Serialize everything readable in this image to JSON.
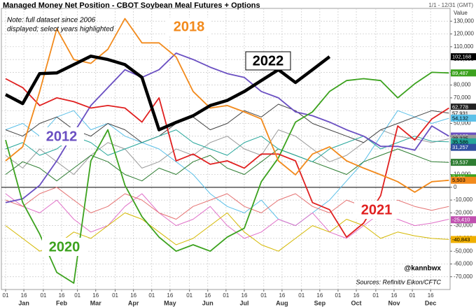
{
  "chart_data": {
    "type": "line",
    "title": "Managed Money Net Position - CBOT Soybean Meal Futures + Options",
    "date_range": "1/1 - 12/31 (GMT)",
    "y_axis_label": "Value",
    "note": [
      "Note: full dataset since 2006",
      "displayed; select years highlighted"
    ],
    "credit": "@kannbwx",
    "source": "Sources: Refinitiv Eikon/CFTC",
    "grid": true,
    "xlim": [
      1,
      366
    ],
    "ylim": [
      -80000,
      140000
    ],
    "x": [
      1,
      15,
      29,
      43,
      57,
      71,
      85,
      99,
      113,
      127,
      141,
      155,
      169,
      183,
      197,
      211,
      225,
      239,
      253,
      267,
      281,
      295,
      309,
      323,
      337,
      351,
      365
    ],
    "xticks": [
      {
        "value": 1,
        "label": "01"
      },
      {
        "value": 16,
        "label": "16"
      },
      {
        "value": 32,
        "label": "01"
      },
      {
        "value": 47,
        "label": "16"
      },
      {
        "value": 60,
        "label": "01"
      },
      {
        "value": 75,
        "label": "16"
      },
      {
        "value": 91,
        "label": "01"
      },
      {
        "value": 106,
        "label": "16"
      },
      {
        "value": 121,
        "label": "01"
      },
      {
        "value": 136,
        "label": "16"
      },
      {
        "value": 152,
        "label": "01"
      },
      {
        "value": 167,
        "label": "16"
      },
      {
        "value": 182,
        "label": "01"
      },
      {
        "value": 197,
        "label": "16"
      },
      {
        "value": 213,
        "label": "01"
      },
      {
        "value": 228,
        "label": "16"
      },
      {
        "value": 244,
        "label": "01"
      },
      {
        "value": 259,
        "label": "16"
      },
      {
        "value": 274,
        "label": "01"
      },
      {
        "value": 289,
        "label": "16"
      },
      {
        "value": 305,
        "label": "01"
      },
      {
        "value": 320,
        "label": "16"
      },
      {
        "value": 335,
        "label": "01"
      },
      {
        "value": 350,
        "label": "16"
      }
    ],
    "month_ticks": [
      {
        "value": 16,
        "label": "Jan"
      },
      {
        "value": 47,
        "label": "Feb"
      },
      {
        "value": 75,
        "label": "Mar"
      },
      {
        "value": 106,
        "label": "Apr"
      },
      {
        "value": 136,
        "label": "May"
      },
      {
        "value": 167,
        "label": "Jun"
      },
      {
        "value": 197,
        "label": "Jul"
      },
      {
        "value": 228,
        "label": "Aug"
      },
      {
        "value": 259,
        "label": "Sep"
      },
      {
        "value": 289,
        "label": "Oct"
      },
      {
        "value": 320,
        "label": "Nov"
      },
      {
        "value": 350,
        "label": "Dec"
      }
    ],
    "yticks": [
      {
        "value": -70000,
        "label": "-70,000"
      },
      {
        "value": -60000,
        "label": "-60,000"
      },
      {
        "value": -50000,
        "label": "-50,000"
      },
      {
        "value": -40000,
        "label": "-40,000"
      },
      {
        "value": -30000,
        "label": "-30,000"
      },
      {
        "value": -20000,
        "label": "-20,000"
      },
      {
        "value": -10000,
        "label": "-10,000"
      },
      0,
      {
        "value": 10000,
        "label": "10,000"
      },
      {
        "value": 20000,
        "label": "20,000"
      },
      {
        "value": 30000,
        "label": "30,000"
      },
      {
        "value": 40000,
        "label": "40,000"
      },
      {
        "value": 50000,
        "label": "50,000"
      },
      {
        "value": 60000,
        "label": "60,000"
      },
      {
        "value": 70000,
        "label": "70,000"
      },
      {
        "value": 80000,
        "label": "80,000"
      },
      {
        "value": 90000,
        "label": "90,000"
      },
      {
        "value": 100000,
        "label": "100,000"
      },
      {
        "value": 110000,
        "label": "110,000"
      },
      {
        "value": 120000,
        "label": "120,000"
      },
      {
        "value": 130000,
        "label": "130,000"
      }
    ],
    "series": [
      {
        "color": "#9a9a9a",
        "line_width": 1,
        "values": [
          25000,
          15000,
          30000,
          20000,
          10000,
          25000,
          35000,
          30000,
          15000,
          20000,
          30000,
          25000,
          35000,
          40000,
          30000,
          25000,
          45000,
          40000,
          30000,
          20000,
          25000,
          35000,
          45000,
          40000,
          38000,
          35000,
          38000
        ]
      },
      {
        "color": "#5bc0e8",
        "line_width": 1,
        "values": [
          45000,
          50000,
          40000,
          55000,
          60000,
          45000,
          50000,
          40000,
          35000,
          30000,
          20000,
          10000,
          -5000,
          -15000,
          -20000,
          -10000,
          -25000,
          -30000,
          -20000,
          -10000,
          5000,
          20000,
          40000,
          60000,
          55000,
          50000,
          54000
        ]
      },
      {
        "color": "#e070c8",
        "line_width": 1,
        "values": [
          -5000,
          -15000,
          -20000,
          -10000,
          -25000,
          -35000,
          -30000,
          -15000,
          -5000,
          -20000,
          -30000,
          -25000,
          -15000,
          -30000,
          -40000,
          -35000,
          -25000,
          -30000,
          -20000,
          -35000,
          -40000,
          -30000,
          -20000,
          -25000,
          -30000,
          -28000,
          -25000
        ]
      },
      {
        "color": "#2e7d32",
        "line_width": 1,
        "values": [
          10000,
          20000,
          15000,
          5000,
          15000,
          25000,
          20000,
          10000,
          5000,
          15000,
          10000,
          20000,
          25000,
          15000,
          10000,
          20000,
          30000,
          25000,
          20000,
          15000,
          10000,
          20000,
          25000,
          30000,
          25000,
          20000,
          19500
        ]
      },
      {
        "color": "#444444",
        "line_width": 1,
        "values": [
          45000,
          40000,
          50000,
          55000,
          45000,
          40000,
          50000,
          45000,
          35000,
          40000,
          50000,
          55000,
          45000,
          50000,
          60000,
          55000,
          65000,
          60000,
          50000,
          45000,
          40000,
          35000,
          45000,
          50000,
          55000,
          60000,
          58000
        ]
      },
      {
        "color": "#26a69a",
        "line_width": 1,
        "values": [
          30000,
          35000,
          25000,
          30000,
          40000,
          35000,
          25000,
          30000,
          35000,
          40000,
          45000,
          35000,
          30000,
          25000,
          35000,
          40000,
          30000,
          25000,
          20000,
          30000,
          35000,
          40000,
          30000,
          35000,
          40000,
          36000,
          35600
        ]
      },
      {
        "color": "#d4b800",
        "line_width": 1,
        "values": [
          -30000,
          -40000,
          -50000,
          -45000,
          -35000,
          -40000,
          -30000,
          -20000,
          -25000,
          -35000,
          -45000,
          -40000,
          -30000,
          -20000,
          -35000,
          -45000,
          -50000,
          -40000,
          -30000,
          -35000,
          -25000,
          -30000,
          -40000,
          -35000,
          -38000,
          -40000,
          -40800
        ]
      },
      {
        "color": "#e57373",
        "line_width": 1,
        "values": [
          -10000,
          -15000,
          -5000,
          0,
          -10000,
          -20000,
          -15000,
          -5000,
          -10000,
          -20000,
          -25000,
          -15000,
          -10000,
          -5000,
          -15000,
          -20000,
          -10000,
          -5000,
          -15000,
          -20000,
          -10000,
          -15000,
          -20000,
          -10000,
          -15000,
          -18000,
          -15000
        ]
      },
      {
        "name": "2012",
        "color": "#6a4fc2",
        "line_width": 1.8,
        "values": [
          -12000,
          -9000,
          1600,
          20700,
          42600,
          64000,
          78000,
          92000,
          86000,
          92000,
          105000,
          100000,
          94000,
          89000,
          86000,
          75000,
          70000,
          59000,
          56000,
          51000,
          45000,
          40000,
          32000,
          32000,
          29000,
          48000,
          40000
        ]
      },
      {
        "name": "2020",
        "color": "#3ca21e",
        "line_width": 1.8,
        "values": [
          37000,
          -12000,
          -36600,
          -66600,
          -75000,
          20700,
          45000,
          1600,
          -23000,
          -39000,
          -50000,
          -45000,
          -50000,
          -39000,
          -32000,
          4400,
          23000,
          51000,
          59000,
          75000,
          83500,
          85000,
          83500,
          70000,
          81000,
          90000,
          89487
        ]
      },
      {
        "name": "2021",
        "color": "#e02020",
        "line_width": 1.8,
        "values": [
          85000,
          78000,
          64000,
          70000,
          67000,
          62000,
          64000,
          62000,
          51000,
          70000,
          20700,
          26000,
          18000,
          20700,
          15000,
          26000,
          26000,
          20700,
          -12000,
          -17500,
          -39000,
          -28000,
          -6500,
          48000,
          37000,
          53500,
          62000
        ]
      },
      {
        "name": "2018",
        "color": "#f28a1c",
        "line_width": 1.8,
        "values": [
          20700,
          31700,
          75000,
          124000,
          100000,
          97000,
          108000,
          132000,
          113000,
          113000,
          102000,
          75000,
          62000,
          64000,
          59000,
          53500,
          20700,
          9800,
          26000,
          31700,
          20700,
          15000,
          9800,
          4400,
          -3800,
          4400,
          5503
        ]
      },
      {
        "name": "2022",
        "color": "#000000",
        "line_width": 4.5,
        "values": [
          72600,
          65500,
          89000,
          89500,
          96000,
          102600,
          100000,
          96000,
          86000,
          45000,
          50800,
          56000,
          64000,
          68000,
          75000,
          83500,
          92000,
          82000,
          92000,
          102168,
          null,
          null,
          null,
          null,
          null,
          null,
          null
        ]
      }
    ],
    "end_labels": [
      {
        "value": 102168,
        "label": "102,168",
        "color": "#000000",
        "text_color": "#ffffff"
      },
      {
        "value": 89487,
        "label": "89,487",
        "color": "#3ca21e",
        "text_color": "#ffffff"
      },
      {
        "value": 62778,
        "label": "62,778",
        "color": "#222222",
        "text_color": "#ffffff"
      },
      {
        "value": 57931,
        "label": "57,931",
        "color": "#eeeeee",
        "text_color": "#000000"
      },
      {
        "value": 54132,
        "label": "54,132",
        "color": "#5bc0e8",
        "text_color": "#000000"
      },
      {
        "value": 40129,
        "label": "40,129",
        "color": "#6a4fc2",
        "text_color": "#ffffff"
      },
      {
        "value": 38335,
        "label": "38,335",
        "color": "#9a9a9a",
        "text_color": "#000000"
      },
      {
        "value": 35586,
        "label": "35,586",
        "color": "#26a69a",
        "text_color": "#000000"
      },
      {
        "value": 31257,
        "label": "31,257",
        "color": "#3050a0",
        "text_color": "#ffffff"
      },
      {
        "value": 19537,
        "label": "19,537",
        "color": "#2e7d32",
        "text_color": "#ffffff"
      },
      {
        "value": 7436,
        "label": "7,436",
        "color": "#3ca21e",
        "text_color": "#ffffff"
      },
      {
        "value": 5503,
        "label": "5,503",
        "color": "#f28a1c",
        "text_color": "#000000"
      },
      {
        "value": -25410,
        "label": "-25,410",
        "color": "#c050b0",
        "text_color": "#ffffff"
      },
      {
        "value": -40843,
        "label": "-40,843",
        "color": "#f0b000",
        "text_color": "#000000"
      }
    ]
  }
}
